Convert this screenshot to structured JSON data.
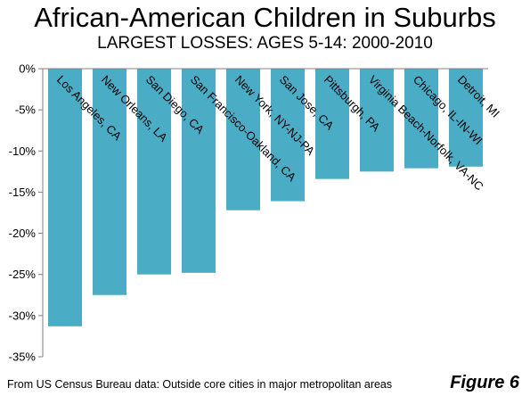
{
  "title": "African-American Children in Suburbs",
  "subtitle": "LARGEST LOSSES: AGES 5-14: 2000-2010",
  "footer": "From US Census Bureau data: Outside core cities in major metropolitan areas",
  "figure_label": "Figure 6",
  "colors": {
    "bar": "#4BACC6",
    "axis": "#808080",
    "grid": "#d9d9d9"
  },
  "chart_data": {
    "type": "bar",
    "categories": [
      "Los Angeles, CA",
      "New Orleans, LA",
      "San Diego, CA",
      "San Francisco-Oakland, CA",
      "New York, NY-NJ-PA",
      "San Jose, CA",
      "Pittsburgh, PA",
      "Virginia Beach-Norfolk, VA-NC",
      "Chicago, IL-IN-WI",
      "Detroit,  MI"
    ],
    "values": [
      -31.3,
      -27.5,
      -25.0,
      -24.8,
      -17.2,
      -16.1,
      -13.4,
      -12.5,
      -12.1,
      -11.9
    ],
    "ylim": [
      -35,
      0
    ],
    "yticks": [
      0,
      -5,
      -10,
      -15,
      -20,
      -25,
      -30,
      -35
    ],
    "ytick_labels": [
      "0%",
      "-5%",
      "-10%",
      "-15%",
      "-20%",
      "-25%",
      "-30%",
      "-35%"
    ],
    "grid": false,
    "legend": "none",
    "title": "African-American Children in Suburbs",
    "subtitle": "LARGEST LOSSES: AGES 5-14: 2000-2010"
  }
}
